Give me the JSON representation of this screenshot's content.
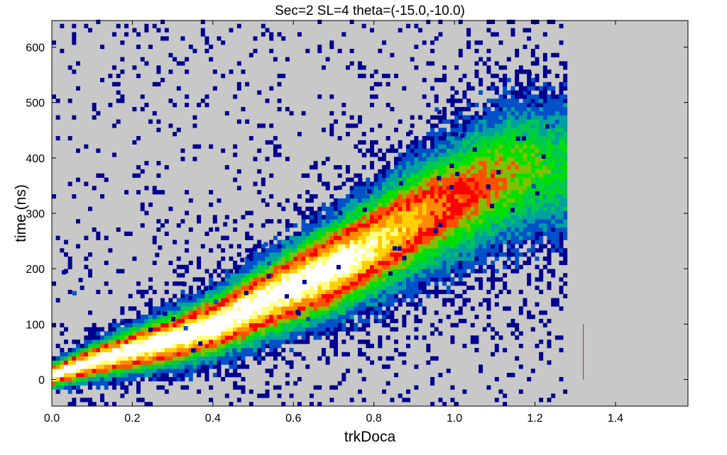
{
  "chart_data": {
    "type": "heatmap",
    "title": "Sec=2 SL=4 theta=(-15.0,-10.0)",
    "xlabel": "trkDoca",
    "ylabel": "time (ns)",
    "xlim": [
      0.0,
      1.58
    ],
    "ylim": [
      -48,
      648
    ],
    "x_ticks": [
      "0.0",
      "0.2",
      "0.4",
      "0.6",
      "0.8",
      "1.0",
      "1.2",
      "1.4"
    ],
    "y_ticks": [
      "0",
      "100",
      "200",
      "300",
      "400",
      "500",
      "600"
    ],
    "x_tick_values": [
      0.0,
      0.2,
      0.4,
      0.6,
      0.8,
      1.0,
      1.2,
      1.4
    ],
    "y_tick_values": [
      0,
      100,
      200,
      300,
      400,
      500,
      600
    ],
    "background_color": "#c8c8c8",
    "colormap": [
      "#00008f",
      "#0050c8",
      "#00a0a0",
      "#00c850",
      "#00e000",
      "#80c000",
      "#ff5000",
      "#ff0000",
      "#ff8c00",
      "#ffd000",
      "#ffff80",
      "#ffffff"
    ],
    "ridge": {
      "description_points": [
        [
          0.0,
          5
        ],
        [
          0.1,
          30
        ],
        [
          0.2,
          50
        ],
        [
          0.3,
          70
        ],
        [
          0.4,
          95
        ],
        [
          0.5,
          130
        ],
        [
          0.6,
          165
        ],
        [
          0.7,
          200
        ],
        [
          0.8,
          240
        ],
        [
          0.9,
          285
        ],
        [
          1.0,
          320
        ],
        [
          1.1,
          360
        ],
        [
          1.2,
          380
        ]
      ]
    },
    "marker_line": {
      "x": 1.32,
      "y": [
        0,
        100
      ],
      "color": "#c03020"
    },
    "grid": false
  }
}
